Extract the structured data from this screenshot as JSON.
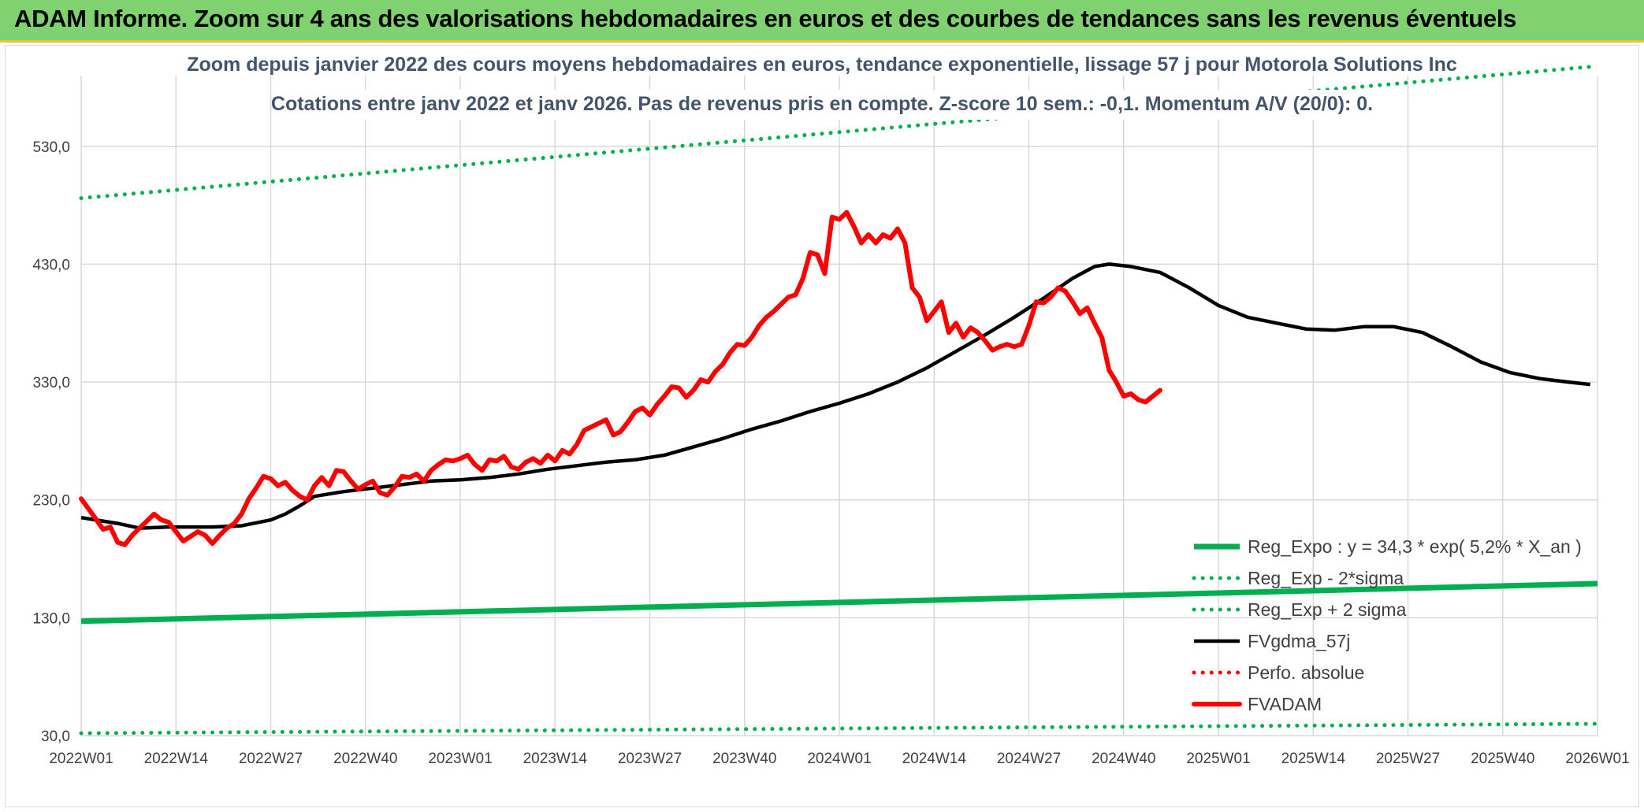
{
  "header": {
    "title": "ADAM Informe. Zoom sur 4 ans des valorisations hebdomadaires en euros et des courbes de tendances sans les revenus éventuels"
  },
  "colors": {
    "header_bg": "#7fd26f",
    "green": "#00b050",
    "red": "#ff0000",
    "black": "#000000",
    "grid": "#d9d9d9"
  },
  "chart_data": {
    "type": "line",
    "title": "Zoom depuis janvier 2022 des cours moyens hebdomadaires en euros, tendance exponentielle, lissage 57 j pour Motorola Solutions Inc",
    "subtitle": "Cotations entre janv 2022 et janv 2026. Pas de revenus pris en compte. Z-score 10 sem.: -0,1. Momentum A/V (20/0): 0.",
    "xlabel": "",
    "ylabel": "",
    "ylim": [
      30,
      590
    ],
    "y_ticks": [
      "530,0",
      "430,0",
      "330,0",
      "230,0",
      "130,0",
      "30,0"
    ],
    "y_tick_values": [
      530,
      430,
      330,
      230,
      130,
      30
    ],
    "x_ticks": [
      "2022W01",
      "2022W14",
      "2022W27",
      "2022W40",
      "2023W01",
      "2023W14",
      "2023W27",
      "2023W40",
      "2024W01",
      "2024W14",
      "2024W27",
      "2024W40",
      "2025W01",
      "2025W14",
      "2025W27",
      "2025W40",
      "2026W01"
    ],
    "x_range_weeks": [
      0,
      208
    ],
    "grid": true,
    "legend_position": "bottom-right",
    "series": [
      {
        "name": "Reg_Expo : y = 34,3 * exp( 5,2% *  X_an )",
        "style": "solid",
        "color": "#00b050",
        "points": [
          [
            0,
            127
          ],
          [
            208,
            159
          ]
        ]
      },
      {
        "name": "Reg_Exp - 2*sigma",
        "style": "dotted",
        "color": "#00b050",
        "points": [
          [
            0,
            32
          ],
          [
            208,
            40
          ]
        ]
      },
      {
        "name": "Reg_Exp + 2 sigma",
        "style": "dotted",
        "color": "#00b050",
        "points": [
          [
            0,
            486
          ],
          [
            208,
            598
          ]
        ]
      },
      {
        "name": "FVgdma_57j",
        "style": "solid",
        "color": "#000000",
        "points": [
          [
            0,
            215
          ],
          [
            5,
            210
          ],
          [
            8,
            206
          ],
          [
            12,
            207
          ],
          [
            18,
            207
          ],
          [
            22,
            208
          ],
          [
            26,
            213
          ],
          [
            28,
            218
          ],
          [
            30,
            225
          ],
          [
            32,
            233
          ],
          [
            36,
            237
          ],
          [
            40,
            240
          ],
          [
            44,
            243
          ],
          [
            48,
            246
          ],
          [
            52,
            247
          ],
          [
            56,
            249
          ],
          [
            60,
            252
          ],
          [
            64,
            256
          ],
          [
            68,
            259
          ],
          [
            72,
            262
          ],
          [
            76,
            264
          ],
          [
            80,
            268
          ],
          [
            84,
            275
          ],
          [
            88,
            282
          ],
          [
            92,
            290
          ],
          [
            96,
            297
          ],
          [
            100,
            305
          ],
          [
            104,
            312
          ],
          [
            108,
            320
          ],
          [
            112,
            330
          ],
          [
            116,
            342
          ],
          [
            120,
            356
          ],
          [
            124,
            370
          ],
          [
            128,
            385
          ],
          [
            132,
            401
          ],
          [
            136,
            418
          ],
          [
            139,
            428
          ],
          [
            141,
            430
          ],
          [
            144,
            428
          ],
          [
            148,
            423
          ],
          [
            152,
            410
          ],
          [
            156,
            395
          ],
          [
            160,
            385
          ],
          [
            164,
            380
          ],
          [
            168,
            375
          ],
          [
            172,
            374
          ],
          [
            176,
            377
          ],
          [
            180,
            377
          ],
          [
            184,
            372
          ],
          [
            188,
            360
          ],
          [
            192,
            347
          ],
          [
            196,
            338
          ],
          [
            200,
            333
          ],
          [
            204,
            330
          ],
          [
            207,
            328
          ]
        ]
      },
      {
        "name": "Perfo. absolue",
        "style": "dotted",
        "color": "#ff0000",
        "points": []
      },
      {
        "name": "FVADAM",
        "style": "solid",
        "color": "#ff0000",
        "points": [
          [
            0,
            231
          ],
          [
            2,
            214
          ],
          [
            3,
            205
          ],
          [
            4,
            207
          ],
          [
            5,
            194
          ],
          [
            6,
            192
          ],
          [
            7,
            200
          ],
          [
            8,
            206
          ],
          [
            9,
            212
          ],
          [
            10,
            218
          ],
          [
            11,
            213
          ],
          [
            12,
            211
          ],
          [
            13,
            203
          ],
          [
            14,
            195
          ],
          [
            15,
            199
          ],
          [
            16,
            203
          ],
          [
            17,
            200
          ],
          [
            18,
            193
          ],
          [
            19,
            200
          ],
          [
            20,
            206
          ],
          [
            21,
            210
          ],
          [
            22,
            218
          ],
          [
            23,
            231
          ],
          [
            24,
            240
          ],
          [
            25,
            250
          ],
          [
            26,
            248
          ],
          [
            27,
            242
          ],
          [
            28,
            245
          ],
          [
            29,
            238
          ],
          [
            30,
            233
          ],
          [
            31,
            230
          ],
          [
            32,
            242
          ],
          [
            33,
            249
          ],
          [
            34,
            242
          ],
          [
            35,
            255
          ],
          [
            36,
            254
          ],
          [
            37,
            246
          ],
          [
            38,
            239
          ],
          [
            39,
            243
          ],
          [
            40,
            246
          ],
          [
            41,
            236
          ],
          [
            42,
            234
          ],
          [
            43,
            241
          ],
          [
            44,
            250
          ],
          [
            45,
            249
          ],
          [
            46,
            252
          ],
          [
            47,
            246
          ],
          [
            48,
            255
          ],
          [
            49,
            260
          ],
          [
            50,
            264
          ],
          [
            51,
            263
          ],
          [
            52,
            265
          ],
          [
            53,
            268
          ],
          [
            54,
            260
          ],
          [
            55,
            255
          ],
          [
            56,
            264
          ],
          [
            57,
            263
          ],
          [
            58,
            267
          ],
          [
            59,
            258
          ],
          [
            60,
            256
          ],
          [
            61,
            262
          ],
          [
            62,
            265
          ],
          [
            63,
            261
          ],
          [
            64,
            268
          ],
          [
            65,
            263
          ],
          [
            66,
            272
          ],
          [
            67,
            269
          ],
          [
            68,
            277
          ],
          [
            69,
            289
          ],
          [
            70,
            292
          ],
          [
            71,
            295
          ],
          [
            72,
            298
          ],
          [
            73,
            285
          ],
          [
            74,
            288
          ],
          [
            75,
            296
          ],
          [
            76,
            305
          ],
          [
            77,
            308
          ],
          [
            78,
            302
          ],
          [
            79,
            311
          ],
          [
            80,
            318
          ],
          [
            81,
            326
          ],
          [
            82,
            325
          ],
          [
            83,
            317
          ],
          [
            84,
            323
          ],
          [
            85,
            332
          ],
          [
            86,
            330
          ],
          [
            87,
            339
          ],
          [
            88,
            345
          ],
          [
            89,
            355
          ],
          [
            90,
            362
          ],
          [
            91,
            361
          ],
          [
            92,
            368
          ],
          [
            93,
            378
          ],
          [
            94,
            385
          ],
          [
            95,
            390
          ],
          [
            96,
            396
          ],
          [
            97,
            402
          ],
          [
            98,
            404
          ],
          [
            99,
            418
          ],
          [
            100,
            440
          ],
          [
            101,
            438
          ],
          [
            102,
            422
          ],
          [
            103,
            470
          ],
          [
            104,
            468
          ],
          [
            105,
            474
          ],
          [
            106,
            462
          ],
          [
            107,
            448
          ],
          [
            108,
            455
          ],
          [
            109,
            448
          ],
          [
            110,
            455
          ],
          [
            111,
            452
          ],
          [
            112,
            460
          ],
          [
            113,
            448
          ],
          [
            114,
            410
          ],
          [
            115,
            402
          ],
          [
            116,
            382
          ],
          [
            117,
            390
          ],
          [
            118,
            398
          ],
          [
            119,
            372
          ],
          [
            120,
            380
          ],
          [
            121,
            368
          ],
          [
            122,
            376
          ],
          [
            123,
            372
          ],
          [
            124,
            365
          ],
          [
            125,
            357
          ],
          [
            126,
            360
          ],
          [
            127,
            362
          ],
          [
            128,
            360
          ],
          [
            129,
            362
          ],
          [
            130,
            378
          ],
          [
            131,
            398
          ],
          [
            132,
            397
          ],
          [
            133,
            402
          ],
          [
            134,
            410
          ],
          [
            135,
            407
          ],
          [
            136,
            398
          ],
          [
            137,
            388
          ],
          [
            138,
            393
          ],
          [
            139,
            380
          ],
          [
            140,
            368
          ],
          [
            141,
            340
          ],
          [
            142,
            330
          ],
          [
            143,
            318
          ],
          [
            144,
            320
          ],
          [
            145,
            315
          ],
          [
            146,
            313
          ],
          [
            147,
            318
          ],
          [
            148,
            323
          ]
        ]
      }
    ]
  }
}
